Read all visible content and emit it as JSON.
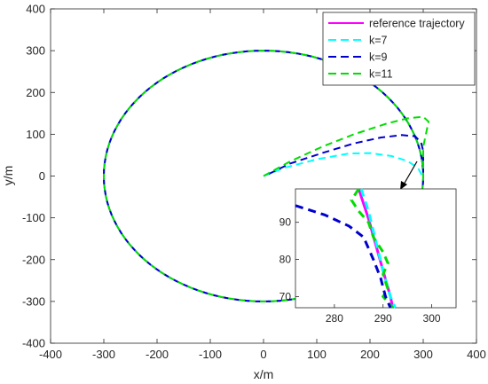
{
  "chart_data": {
    "type": "line",
    "title": "",
    "xlabel": "x/m",
    "ylabel": "y/m",
    "xlim": [
      -400,
      400
    ],
    "ylim": [
      -400,
      400
    ],
    "xticks": [
      -400,
      -300,
      -200,
      -100,
      0,
      100,
      200,
      300,
      400
    ],
    "yticks": [
      -400,
      -300,
      -200,
      -100,
      0,
      100,
      200,
      300,
      400
    ],
    "grid": false,
    "legend_position": "top-right",
    "series": [
      {
        "name": "reference trajectory",
        "style": "solid",
        "color": "#ff00ff",
        "shape": "circle",
        "center": [
          0,
          0
        ],
        "radius": 300
      },
      {
        "name": "k=7",
        "style": "dashed",
        "color": "#00ffff",
        "approach": [
          [
            0,
            0
          ],
          [
            40,
            20
          ],
          [
            100,
            40
          ],
          [
            160,
            54
          ],
          [
            200,
            55
          ],
          [
            240,
            48
          ],
          [
            270,
            36
          ],
          [
            290,
            20
          ],
          [
            298,
            0
          ]
        ]
      },
      {
        "name": "k=9",
        "style": "dashed",
        "color": "#0000cc",
        "approach": [
          [
            10,
            5
          ],
          [
            50,
            30
          ],
          [
            110,
            55
          ],
          [
            170,
            78
          ],
          [
            220,
            92
          ],
          [
            260,
            98
          ],
          [
            285,
            95
          ],
          [
            296,
            80
          ],
          [
            300,
            60
          ],
          [
            300,
            0
          ]
        ]
      },
      {
        "name": "k=11",
        "style": "dashed",
        "color": "#00dd00",
        "approach": [
          [
            0,
            0
          ],
          [
            50,
            35
          ],
          [
            110,
            70
          ],
          [
            170,
            100
          ],
          [
            230,
            125
          ],
          [
            270,
            138
          ],
          [
            300,
            142
          ],
          [
            310,
            130
          ],
          [
            305,
            100
          ],
          [
            300,
            70
          ],
          [
            300,
            0
          ]
        ]
      }
    ],
    "inset": {
      "xlim": [
        272,
        305
      ],
      "ylim": [
        67,
        99
      ],
      "xticks": [
        280,
        290,
        300
      ],
      "yticks": [
        70,
        80,
        90
      ],
      "reference": [
        [
          285,
          99
        ],
        [
          287,
          91
        ],
        [
          288.5,
          84
        ],
        [
          290,
          77
        ],
        [
          291.5,
          70
        ],
        [
          292,
          67
        ]
      ],
      "k7": [
        [
          285.5,
          99
        ],
        [
          287,
          93
        ],
        [
          288.5,
          85
        ],
        [
          290,
          77
        ],
        [
          291.5,
          70
        ],
        [
          292.5,
          67
        ]
      ],
      "k9": [
        [
          272,
          94.5
        ],
        [
          278,
          92
        ],
        [
          283,
          89
        ],
        [
          286,
          86
        ],
        [
          288,
          80
        ],
        [
          289.5,
          75
        ],
        [
          290.5,
          70
        ],
        [
          291.5,
          67
        ]
      ],
      "k11": [
        [
          285,
          99
        ],
        [
          283.5,
          96
        ],
        [
          285,
          93
        ],
        [
          287,
          90
        ],
        [
          288,
          86
        ],
        [
          290,
          82
        ],
        [
          291,
          79
        ],
        [
          290,
          76
        ],
        [
          291,
          72
        ],
        [
          290,
          70
        ],
        [
          292,
          67
        ]
      ]
    }
  }
}
